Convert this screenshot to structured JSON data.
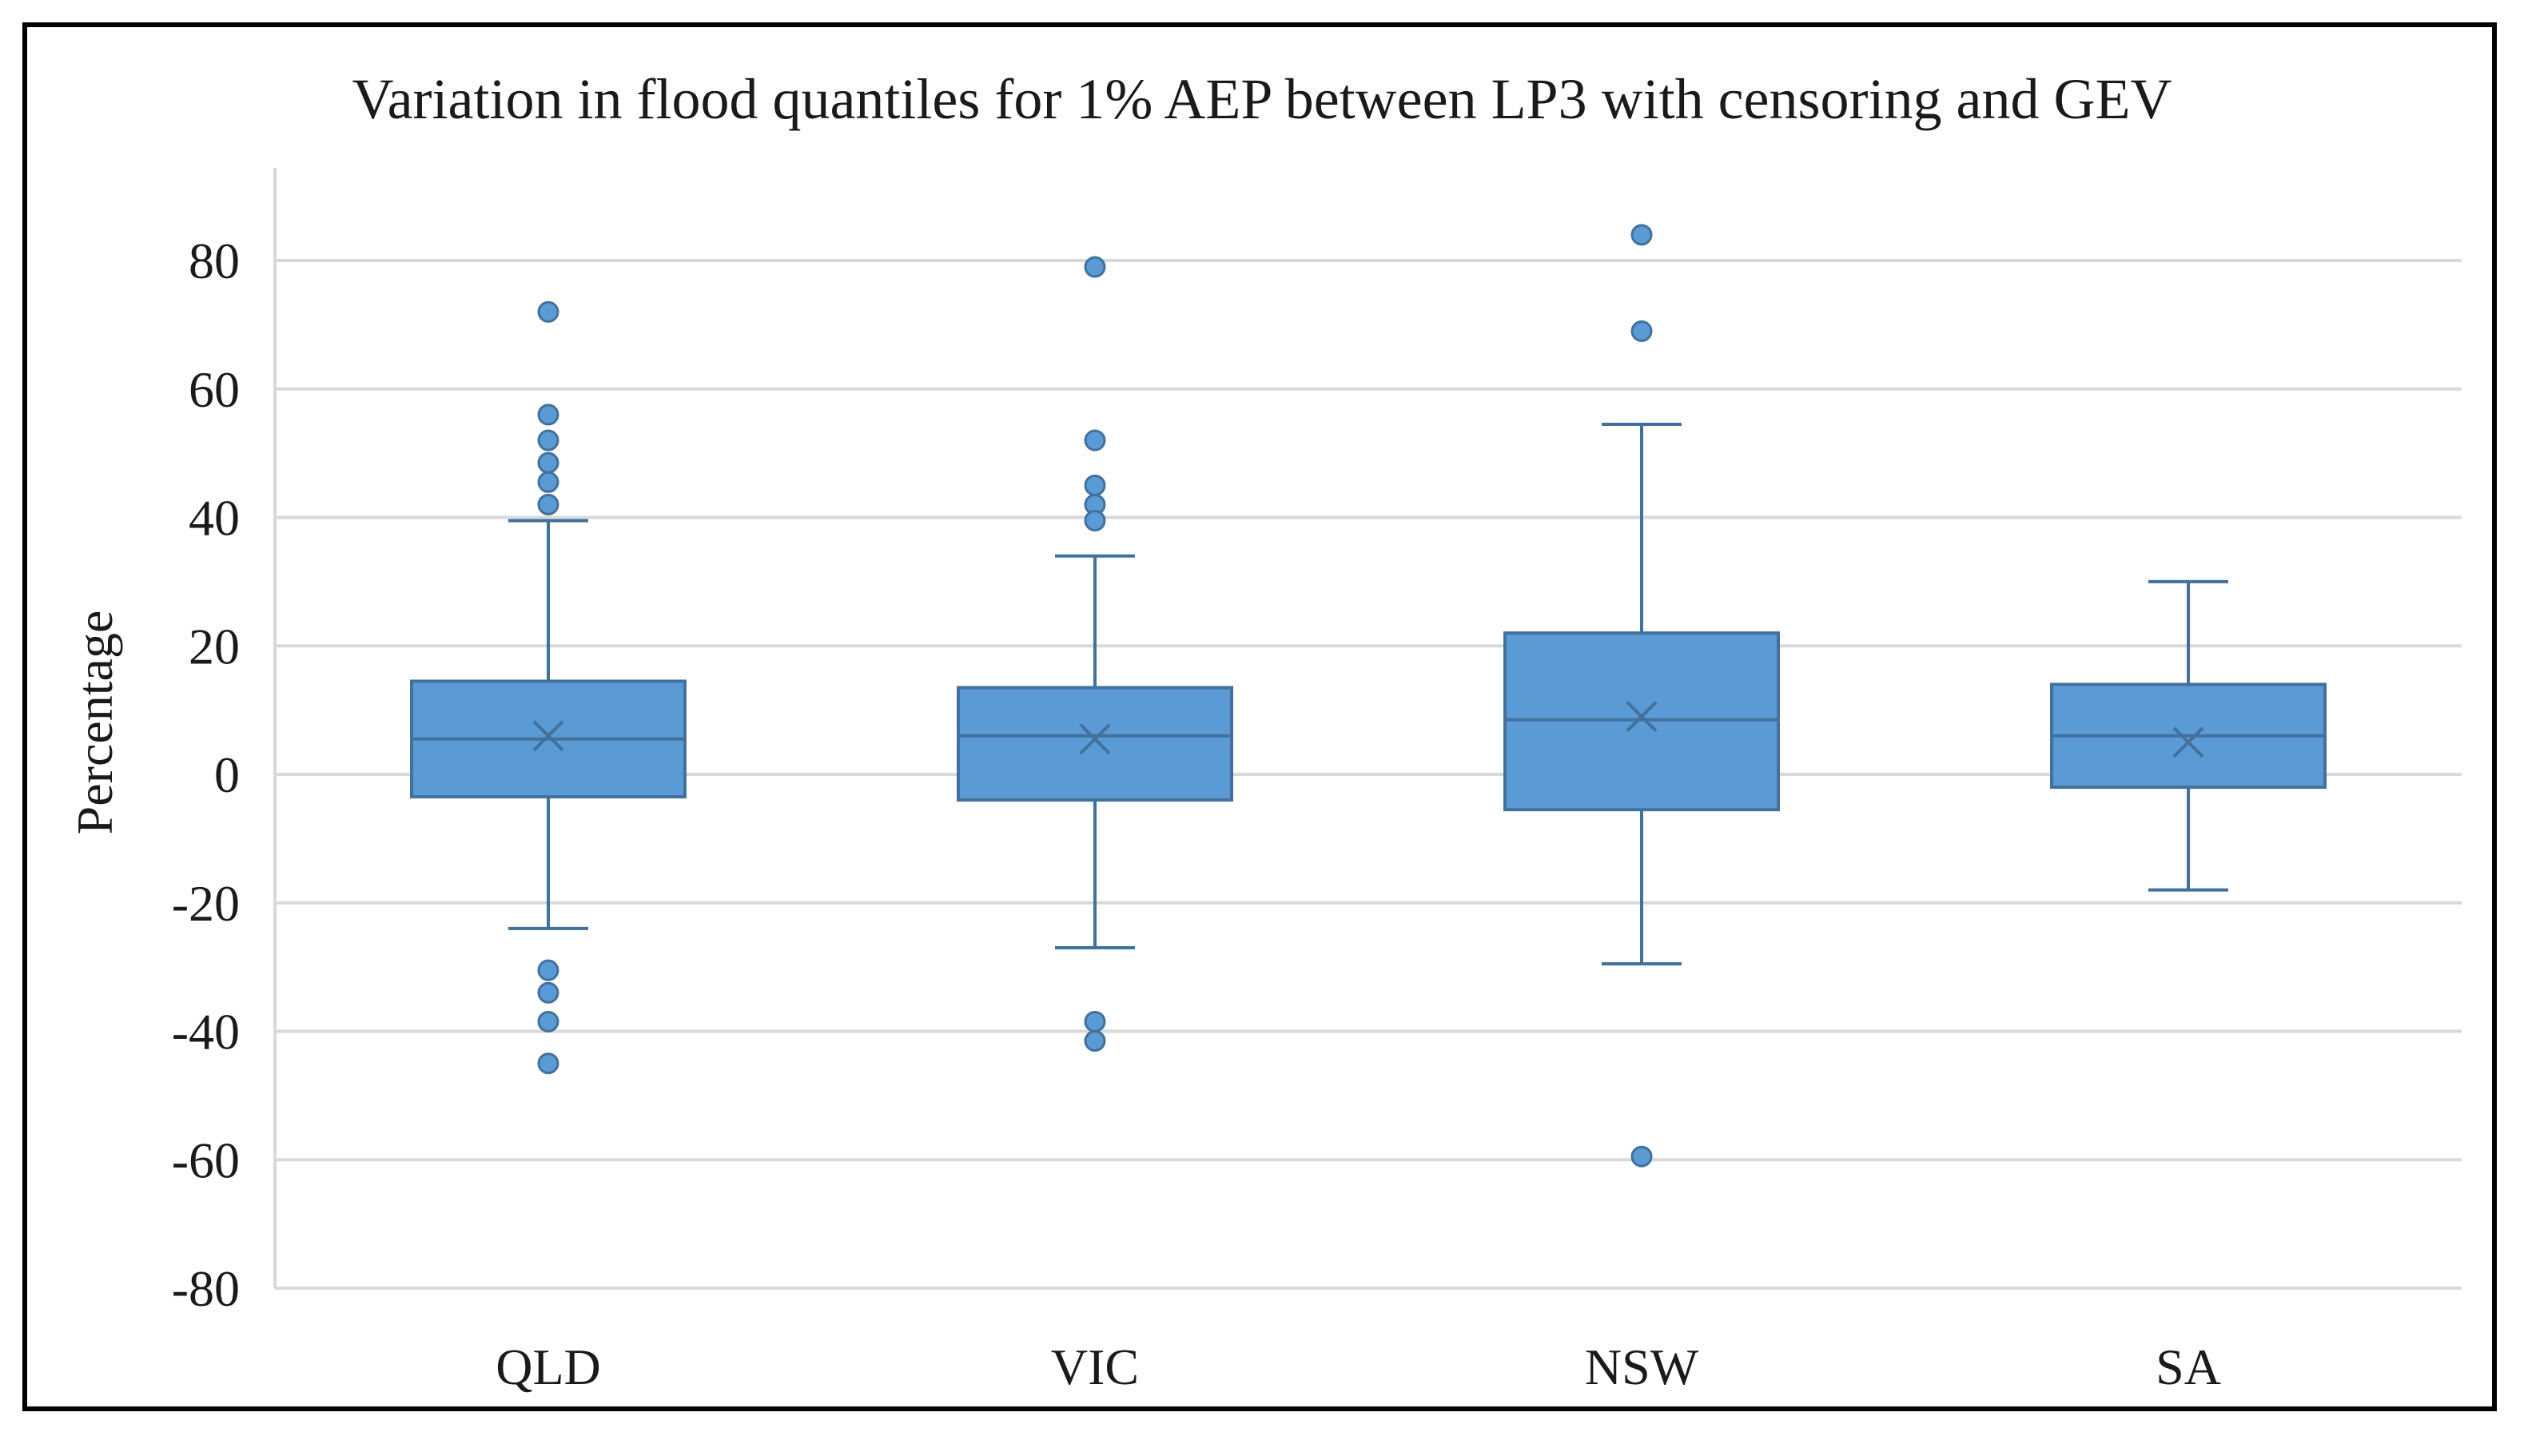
{
  "chart_data": {
    "type": "box",
    "title": "Variation in flood quantiles for 1% AEP between LP3 with censoring and GEV",
    "xlabel": "",
    "ylabel": "Percentage",
    "ylim": [
      -80,
      80
    ],
    "yticks": [
      80,
      60,
      40,
      20,
      0,
      -20,
      -40,
      -60,
      -80
    ],
    "grid": true,
    "color": "#5b9bd5",
    "stroke_color": "#41719c",
    "categories": [
      "QLD",
      "VIC",
      "NSW",
      "SA"
    ],
    "boxes": [
      {
        "category": "QLD",
        "whisker_low": -24,
        "q1": -3.5,
        "median": 5.5,
        "mean": 6,
        "q3": 14.5,
        "whisker_high": 39.5,
        "outliers": [
          72,
          56,
          52,
          48.5,
          45.5,
          42,
          -30.5,
          -34,
          -38.5,
          -45
        ]
      },
      {
        "category": "VIC",
        "whisker_low": -27,
        "q1": -4,
        "median": 6,
        "mean": 5.5,
        "q3": 13.5,
        "whisker_high": 34,
        "outliers": [
          79,
          52,
          45,
          42,
          39.5,
          -38.5,
          -41.5
        ]
      },
      {
        "category": "NSW",
        "whisker_low": -29.5,
        "q1": -5.5,
        "median": 8.5,
        "mean": 9,
        "q3": 22,
        "whisker_high": 54.5,
        "outliers": [
          84,
          69,
          -59.5
        ]
      },
      {
        "category": "SA",
        "whisker_low": -18,
        "q1": -2,
        "median": 6,
        "mean": 5,
        "q3": 14,
        "whisker_high": 30,
        "outliers": []
      }
    ]
  }
}
